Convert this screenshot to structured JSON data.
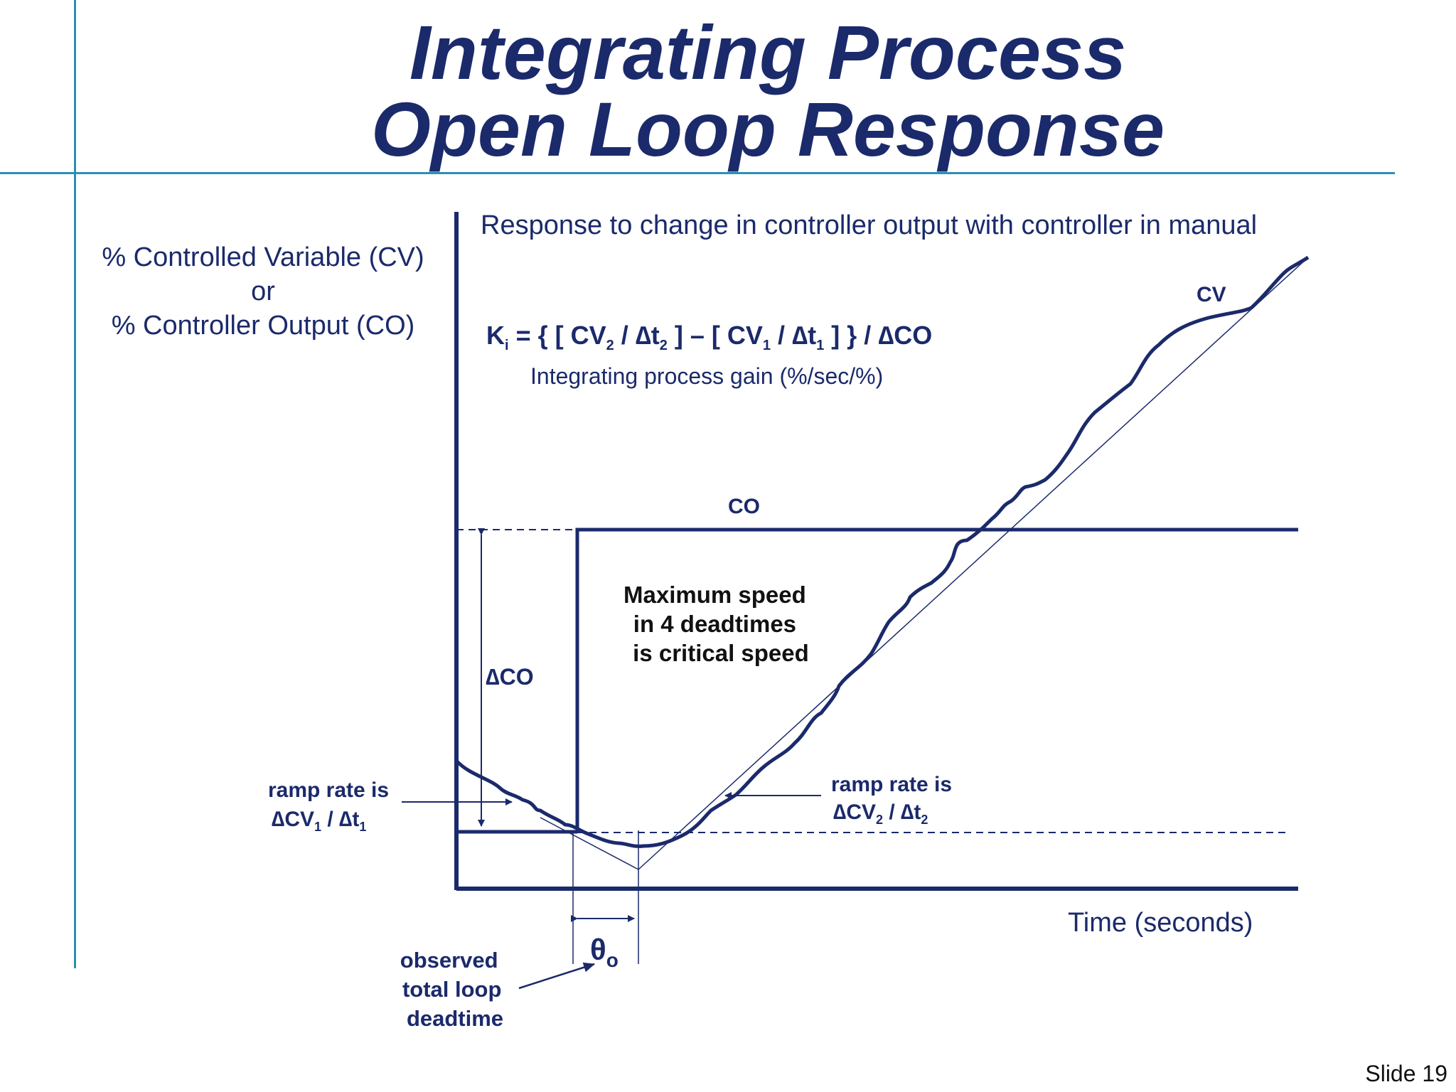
{
  "slide": {
    "title_line1": "Integrating Process",
    "title_line2": "Open Loop Response",
    "slide_number": "Slide 19",
    "accent_color": "#2a8fb2",
    "ink_color": "#1b2a6b"
  },
  "diagram": {
    "y_axis_label": [
      "% Controlled Variable (CV)",
      "or",
      "% Controller Output (CO)"
    ],
    "x_axis_label": "Time (seconds)",
    "subtitle": "Response to change in controller output with controller in manual",
    "formula": {
      "ki": "K",
      "ki_sub": "i",
      "eq": " =  { [ CV",
      "s1": "2",
      "p1": " / ∆t",
      "s2": "2",
      "p2": " ] – [  CV",
      "s3": "1",
      "p3": " / ∆t",
      "s4": "1",
      "p4": " ] } / ∆CO"
    },
    "gain_label": "Integrating process gain (%/sec/%)",
    "cv_label": "CV",
    "co_label": "CO",
    "critical_speed": [
      "Maximum speed",
      "in 4 deadtimes",
      "is critical speed"
    ],
    "delta_co": "∆CO",
    "ramp1": {
      "line1": "ramp rate is",
      "a": "∆CV",
      "a_sub": "1",
      "b": " / ∆t",
      "b_sub": "1"
    },
    "ramp2": {
      "line1": "ramp rate is",
      "a": "∆CV",
      "a_sub": "2",
      "b": " / ∆t",
      "b_sub": "2"
    },
    "theta": "θ",
    "theta_sub": "o",
    "deadtime_label": [
      "observed",
      "total loop",
      "deadtime"
    ]
  }
}
